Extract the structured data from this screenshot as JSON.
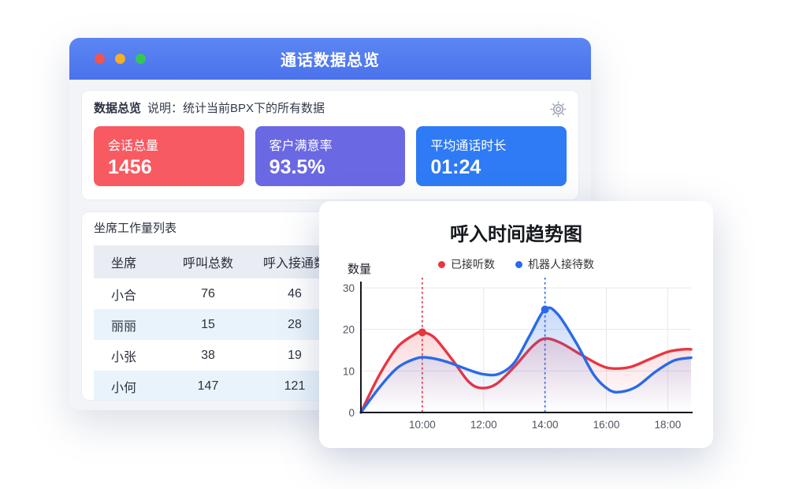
{
  "window": {
    "title": "通话数据总览",
    "traffic_lights": {
      "close": "#f2544e",
      "minimize": "#f3ae2b",
      "zoom": "#33c758"
    },
    "summary": {
      "heading": "数据总览",
      "description": "说明：统计当前BPX下的所有数据",
      "stat_cards": [
        {
          "label": "会话总量",
          "value": "1456",
          "color": "#f85a61"
        },
        {
          "label": "客户满意率",
          "value": "93.5%",
          "color": "#6b68e3"
        },
        {
          "label": "平均通话时长",
          "value": "01:24",
          "color": "#2e7bf5"
        }
      ]
    },
    "agent_table": {
      "title": "坐席工作量列表",
      "headers": [
        "坐席",
        "呼叫总数",
        "呼入接通数"
      ],
      "rows": [
        [
          "小合",
          "76",
          "46"
        ],
        [
          "丽丽",
          "15",
          "28"
        ],
        [
          "小张",
          "38",
          "19"
        ],
        [
          "小何",
          "147",
          "121"
        ]
      ]
    }
  },
  "chart_data": {
    "type": "line",
    "title": "呼入时间趋势图",
    "ylabel": "数量",
    "grid": true,
    "legend_position": "top",
    "ylim": [
      0,
      30
    ],
    "x_range_hours": [
      8,
      18.76
    ],
    "y_ticks": [
      0,
      10,
      20,
      30
    ],
    "x_ticks": [
      {
        "t": 10,
        "label": "10:00"
      },
      {
        "t": 12,
        "label": "12:00"
      },
      {
        "t": 14,
        "label": "14:00"
      },
      {
        "t": 16,
        "label": "16:00"
      },
      {
        "t": 18,
        "label": "18:00"
      }
    ],
    "series": [
      {
        "name": "已接听数",
        "color": "#e93540",
        "points": [
          [
            8,
            0
          ],
          [
            8.6,
            9
          ],
          [
            9.2,
            15.8
          ],
          [
            9.8,
            19
          ],
          [
            10,
            19.3
          ],
          [
            10.4,
            18
          ],
          [
            11,
            12.5
          ],
          [
            11.5,
            7.5
          ],
          [
            11.9,
            5.9
          ],
          [
            12.4,
            6.8
          ],
          [
            13,
            11
          ],
          [
            13.6,
            16
          ],
          [
            14,
            17.8
          ],
          [
            14.5,
            16.8
          ],
          [
            15.2,
            13.8
          ],
          [
            15.8,
            11.4
          ],
          [
            16.2,
            10.6
          ],
          [
            16.8,
            11
          ],
          [
            17.4,
            12.8
          ],
          [
            18,
            14.6
          ],
          [
            18.5,
            15.2
          ],
          [
            18.76,
            15.2
          ]
        ]
      },
      {
        "name": "机器人接待数",
        "color": "#2a6ae9",
        "points": [
          [
            8,
            0
          ],
          [
            8.6,
            6
          ],
          [
            9.2,
            10.8
          ],
          [
            9.8,
            13
          ],
          [
            10.2,
            13.2
          ],
          [
            10.8,
            12.2
          ],
          [
            11.5,
            10.3
          ],
          [
            12,
            9.2
          ],
          [
            12.5,
            9.3
          ],
          [
            13,
            12
          ],
          [
            13.5,
            18.5
          ],
          [
            14,
            24.8
          ],
          [
            14.4,
            23.8
          ],
          [
            15,
            17
          ],
          [
            15.6,
            9
          ],
          [
            16.1,
            5.4
          ],
          [
            16.5,
            5
          ],
          [
            17,
            6.3
          ],
          [
            17.6,
            9.8
          ],
          [
            18.2,
            12.5
          ],
          [
            18.76,
            13.2
          ]
        ]
      }
    ],
    "guide_lines": [
      {
        "t": 10,
        "color": "#e93540"
      },
      {
        "t": 14,
        "color": "#2a6ae9"
      }
    ],
    "markers": [
      {
        "t": 10,
        "v": 19.3,
        "color": "#e93540"
      },
      {
        "t": 14,
        "v": 24.8,
        "color": "#2a6ae9"
      }
    ]
  }
}
